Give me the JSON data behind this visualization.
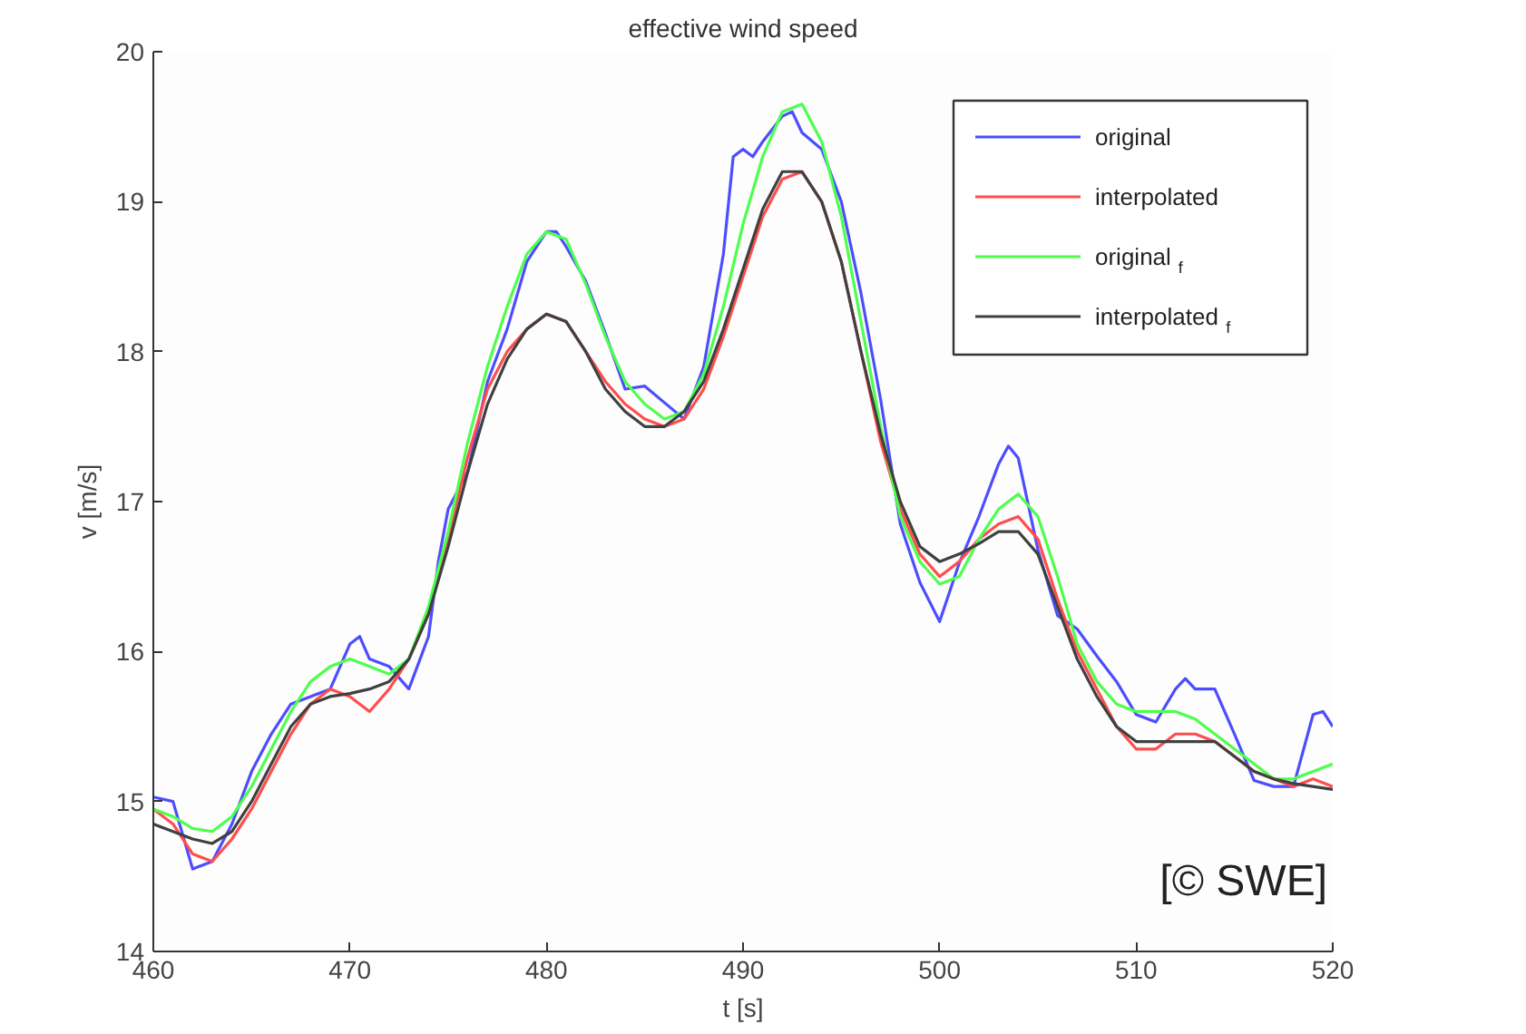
{
  "chart_data": {
    "type": "line",
    "title": "effective wind speed",
    "xlabel": "t [s]",
    "ylabel": "v [m/s]",
    "x": [
      460,
      461,
      462,
      463,
      464,
      465,
      466,
      467,
      468,
      469,
      470,
      471,
      472,
      473,
      474,
      475,
      476,
      477,
      478,
      479,
      480,
      481,
      482,
      483,
      484,
      485,
      486,
      487,
      488,
      489,
      490,
      491,
      492,
      493,
      494,
      495,
      496,
      497,
      498,
      499,
      500,
      501,
      502,
      503,
      504,
      505,
      506,
      507,
      508,
      509,
      510,
      511,
      512,
      513,
      514,
      515,
      516,
      517,
      518,
      519,
      520
    ],
    "series": [
      {
        "name": "original",
        "color": "#4d4dff",
        "x": [
          460,
          461,
          462,
          463,
          464,
          465,
          466,
          467,
          468,
          469,
          470,
          470.5,
          471,
          472,
          473,
          474,
          474.5,
          475,
          476,
          477,
          478,
          479,
          480,
          480.5,
          481,
          482,
          483,
          484,
          485,
          486,
          487,
          488,
          489,
          489.5,
          490,
          490.5,
          491,
          492,
          492.5,
          493,
          494,
          495,
          496,
          497,
          498,
          499,
          500,
          501,
          502,
          503,
          503.5,
          504,
          505,
          506,
          507,
          508,
          509,
          510,
          511,
          512,
          512.5,
          513,
          514,
          515,
          516,
          517,
          518,
          519,
          519.5,
          520
        ],
        "values": [
          15.03,
          15.0,
          14.55,
          14.6,
          14.85,
          15.2,
          15.45,
          15.65,
          15.7,
          15.75,
          16.05,
          16.1,
          15.95,
          15.9,
          15.75,
          16.1,
          16.6,
          16.95,
          17.2,
          17.8,
          18.15,
          18.6,
          18.8,
          18.8,
          18.7,
          18.47,
          18.12,
          17.75,
          17.77,
          17.66,
          17.55,
          17.9,
          18.65,
          19.3,
          19.35,
          19.3,
          19.4,
          19.57,
          19.6,
          19.46,
          19.35,
          19.0,
          18.39,
          17.68,
          16.85,
          16.46,
          16.2,
          16.59,
          16.9,
          17.25,
          17.37,
          17.29,
          16.68,
          16.24,
          16.15,
          15.97,
          15.8,
          15.58,
          15.53,
          15.75,
          15.82,
          15.75,
          15.75,
          15.45,
          15.14,
          15.1,
          15.1,
          15.58,
          15.6,
          15.5
        ]
      },
      {
        "name": "interpolated",
        "color": "#ff4d4d",
        "values": [
          14.95,
          14.85,
          14.65,
          14.6,
          14.75,
          14.95,
          15.2,
          15.45,
          15.65,
          15.75,
          15.7,
          15.6,
          15.75,
          15.95,
          16.25,
          16.75,
          17.3,
          17.75,
          18.0,
          18.15,
          18.25,
          18.2,
          18.0,
          17.8,
          17.65,
          17.55,
          17.5,
          17.55,
          17.75,
          18.1,
          18.5,
          18.9,
          19.15,
          19.2,
          19.0,
          18.6,
          18.0,
          17.4,
          16.95,
          16.65,
          16.5,
          16.6,
          16.75,
          16.85,
          16.9,
          16.75,
          16.35,
          16.0,
          15.75,
          15.5,
          15.35,
          15.35,
          15.45,
          15.45,
          15.4,
          15.3,
          15.2,
          15.15,
          15.1,
          15.15,
          15.1
        ]
      },
      {
        "name": "original$_{f}$",
        "color": "#4dff4d",
        "values": [
          14.95,
          14.9,
          14.82,
          14.8,
          14.9,
          15.1,
          15.35,
          15.6,
          15.8,
          15.9,
          15.95,
          15.9,
          15.85,
          15.95,
          16.3,
          16.8,
          17.4,
          17.9,
          18.3,
          18.65,
          18.8,
          18.75,
          18.45,
          18.1,
          17.8,
          17.65,
          17.55,
          17.6,
          17.85,
          18.3,
          18.85,
          19.3,
          19.6,
          19.65,
          19.4,
          18.9,
          18.2,
          17.5,
          16.9,
          16.6,
          16.45,
          16.5,
          16.75,
          16.95,
          17.05,
          16.9,
          16.5,
          16.05,
          15.8,
          15.65,
          15.6,
          15.6,
          15.6,
          15.55,
          15.45,
          15.35,
          15.25,
          15.15,
          15.15,
          15.2,
          15.25
        ]
      },
      {
        "name": "interpolated$_{f}$",
        "color": "#404040",
        "values": [
          14.85,
          14.8,
          14.75,
          14.72,
          14.8,
          15.0,
          15.25,
          15.5,
          15.65,
          15.7,
          15.72,
          15.75,
          15.8,
          15.95,
          16.25,
          16.7,
          17.2,
          17.65,
          17.95,
          18.15,
          18.25,
          18.2,
          18.0,
          17.75,
          17.6,
          17.5,
          17.5,
          17.6,
          17.8,
          18.15,
          18.55,
          18.95,
          19.2,
          19.2,
          19.0,
          18.6,
          18.0,
          17.45,
          17.0,
          16.7,
          16.6,
          16.65,
          16.72,
          16.8,
          16.8,
          16.65,
          16.3,
          15.95,
          15.7,
          15.5,
          15.4,
          15.4,
          15.4,
          15.4,
          15.4,
          15.3,
          15.2,
          15.15,
          15.12,
          15.1,
          15.08
        ]
      }
    ],
    "xlim": [
      460,
      520
    ],
    "ylim": [
      14,
      20
    ],
    "xticks": [
      460,
      470,
      480,
      490,
      500,
      510,
      520
    ],
    "yticks": [
      14,
      15,
      16,
      17,
      18,
      19,
      20
    ],
    "grid": false,
    "legend": "top right",
    "line_style": "solid",
    "annotations": [
      "[© SWE]"
    ]
  }
}
